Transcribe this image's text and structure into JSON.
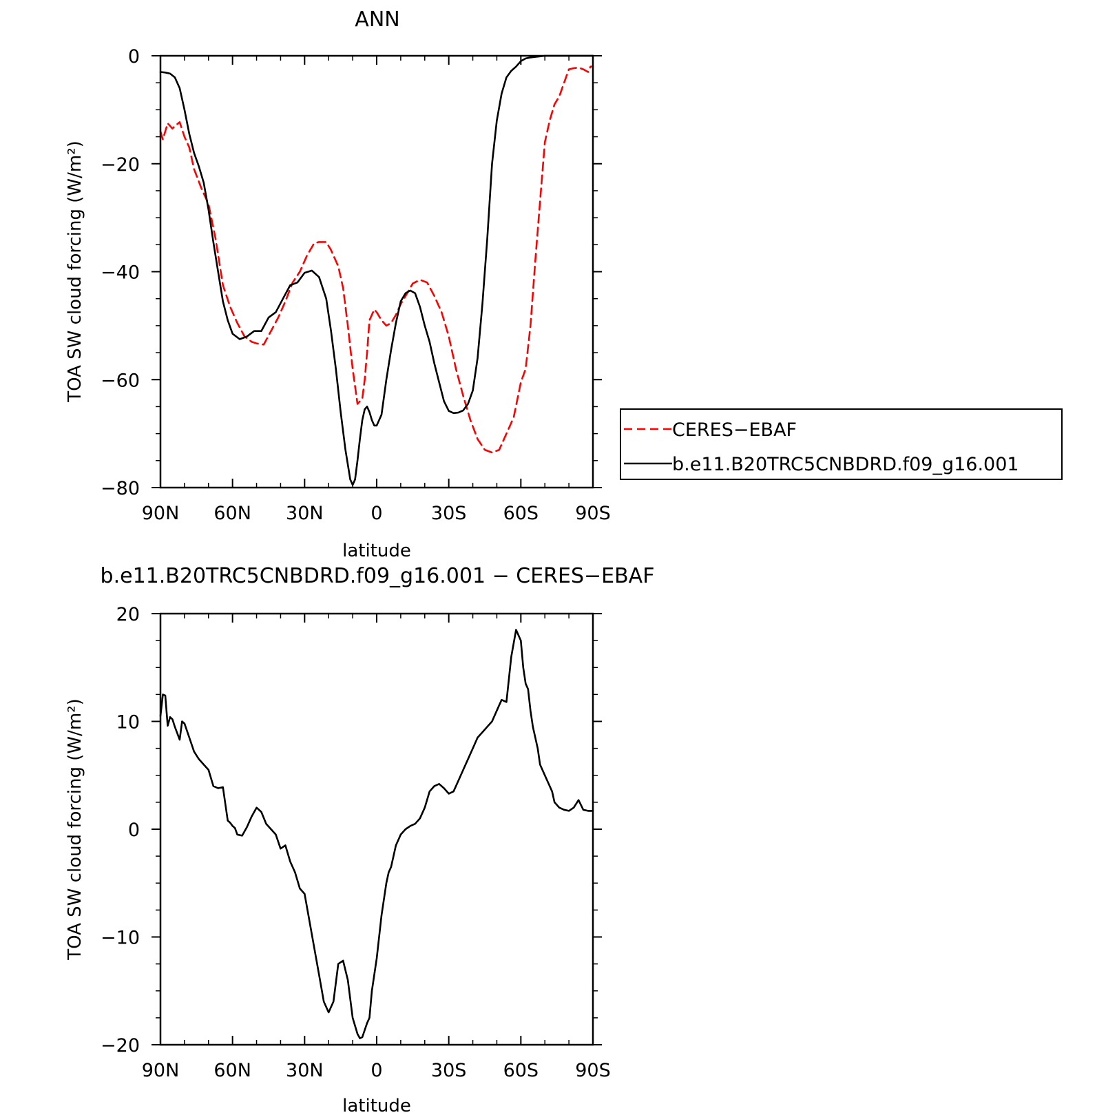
{
  "chart_data": [
    {
      "type": "line",
      "title": "ANN",
      "xlabel": "latitude",
      "ylabel": "TOA SW cloud forcing (W/m²)",
      "xlim": [
        90,
        -90
      ],
      "ylim": [
        -80,
        0
      ],
      "x_ticks": [
        {
          "value": 90,
          "label": "90N"
        },
        {
          "value": 60,
          "label": "60N"
        },
        {
          "value": 30,
          "label": "30N"
        },
        {
          "value": 0,
          "label": "0"
        },
        {
          "value": -30,
          "label": "30S"
        },
        {
          "value": -60,
          "label": "60S"
        },
        {
          "value": -90,
          "label": "90S"
        }
      ],
      "y_ticks": [
        {
          "value": 0,
          "label": "0"
        },
        {
          "value": -20,
          "label": "−20"
        },
        {
          "value": -40,
          "label": "−40"
        },
        {
          "value": -60,
          "label": "−60"
        },
        {
          "value": -80,
          "label": "−80"
        }
      ],
      "legend": {
        "placement": "right"
      },
      "series": [
        {
          "name": "CERES−EBAF",
          "color": "#ff0000",
          "dash": "dashed",
          "x": [
            90,
            89,
            88,
            87,
            85,
            84,
            82,
            80,
            78,
            76,
            73,
            70,
            67,
            64,
            61,
            58,
            55,
            52,
            50,
            47,
            44,
            41,
            38,
            35,
            32,
            29,
            26,
            24,
            21,
            19,
            16,
            14,
            12,
            10,
            8,
            6,
            5,
            4,
            3,
            1,
            0,
            -2,
            -4,
            -6,
            -8,
            -10,
            -12,
            -15,
            -18,
            -21,
            -24,
            -27,
            -30,
            -33,
            -36,
            -39,
            -42,
            -45,
            -48,
            -51,
            -54,
            -57,
            -60,
            -62,
            -64,
            -66,
            -68,
            -70,
            -72,
            -74,
            -76,
            -78,
            -80,
            -82,
            -84,
            -86,
            -88,
            -89,
            -90
          ],
          "y": [
            -14,
            -15.5,
            -14,
            -12.5,
            -13.5,
            -13,
            -12.3,
            -15,
            -17,
            -21,
            -24.5,
            -27.5,
            -34,
            -42.5,
            -46.5,
            -49.5,
            -52,
            -53,
            -53.3,
            -53.5,
            -51,
            -48.5,
            -45.5,
            -42,
            -40,
            -37,
            -34.7,
            -34.5,
            -34.5,
            -36,
            -39,
            -43,
            -50,
            -58,
            -64.5,
            -63.5,
            -60,
            -55,
            -49,
            -47,
            -47.5,
            -49,
            -50,
            -49.5,
            -48,
            -46,
            -44.5,
            -42.2,
            -41.5,
            -42,
            -44.5,
            -47.5,
            -52,
            -58,
            -63,
            -67.5,
            -71,
            -73,
            -73.5,
            -73,
            -70,
            -67,
            -60.5,
            -58,
            -50,
            -38,
            -27,
            -16,
            -12,
            -9,
            -7.5,
            -5,
            -2.5,
            -2.3,
            -2.2,
            -2.5,
            -3,
            -2,
            -2
          ]
        },
        {
          "name": "b.e11.B20TRC5CNBDRD.f09_g16.001",
          "color": "#000000",
          "dash": "solid",
          "x": [
            90,
            88,
            86,
            84,
            82,
            80,
            78,
            76,
            74,
            72,
            70,
            68,
            66,
            64,
            62,
            60,
            57,
            54,
            51,
            48,
            45,
            42,
            39,
            36,
            33,
            30,
            27,
            24,
            21,
            19,
            17,
            15,
            13,
            11,
            10,
            9,
            8,
            7,
            6,
            5,
            4,
            3,
            2,
            1,
            0,
            -1,
            -2,
            -4,
            -6,
            -8,
            -10,
            -12,
            -14,
            -16,
            -18,
            -20,
            -22,
            -24,
            -26,
            -28,
            -30,
            -32,
            -34,
            -36,
            -38,
            -40,
            -42,
            -44,
            -46,
            -48,
            -50,
            -52,
            -54,
            -56,
            -58,
            -60,
            -62,
            -64,
            -66,
            -68,
            -70,
            -72,
            -74,
            -76,
            -78,
            -80,
            -84,
            -88,
            -90
          ],
          "y": [
            -3,
            -3.1,
            -3.3,
            -4,
            -6,
            -10,
            -14.5,
            -18,
            -20.5,
            -23.5,
            -28.5,
            -34.5,
            -40,
            -45.5,
            -49,
            -51.5,
            -52.5,
            -52,
            -51,
            -51,
            -48.5,
            -47.5,
            -45,
            -42.5,
            -42,
            -40.2,
            -39.8,
            -41,
            -45,
            -51,
            -58,
            -66,
            -73,
            -78.5,
            -79.5,
            -78.5,
            -75,
            -71,
            -67.5,
            -65.5,
            -65,
            -66,
            -67.5,
            -68.5,
            -68.5,
            -67.5,
            -66.5,
            -60,
            -54.5,
            -49.5,
            -45.5,
            -44,
            -43.5,
            -44,
            -46.5,
            -50,
            -53,
            -57,
            -60.5,
            -64,
            -65.8,
            -66.2,
            -66.1,
            -65.7,
            -64.5,
            -62,
            -56,
            -46,
            -34,
            -20,
            -12,
            -7,
            -4,
            -2.8,
            -2,
            -1,
            -0.5,
            -0.3,
            -0.2,
            -0.1,
            0,
            0,
            0,
            0,
            0,
            0,
            0,
            0,
            0
          ]
        }
      ]
    },
    {
      "type": "line",
      "title": "b.e11.B20TRC5CNBDRD.f09_g16.001 − CERES−EBAF",
      "xlabel": "latitude",
      "ylabel": "TOA SW cloud forcing (W/m²)",
      "xlim": [
        90,
        -90
      ],
      "ylim": [
        -20,
        20
      ],
      "x_ticks": [
        {
          "value": 90,
          "label": "90N"
        },
        {
          "value": 60,
          "label": "60N"
        },
        {
          "value": 30,
          "label": "30N"
        },
        {
          "value": 0,
          "label": "0"
        },
        {
          "value": -30,
          "label": "30S"
        },
        {
          "value": -60,
          "label": "60S"
        },
        {
          "value": -90,
          "label": "90S"
        }
      ],
      "y_ticks": [
        {
          "value": 20,
          "label": "20"
        },
        {
          "value": 10,
          "label": "10"
        },
        {
          "value": 0,
          "label": "0"
        },
        {
          "value": -10,
          "label": "−10"
        },
        {
          "value": -20,
          "label": "−20"
        }
      ],
      "series": [
        {
          "name": "",
          "color": "#000000",
          "dash": "solid",
          "x": [
            90,
            89,
            88,
            87,
            86,
            85,
            84,
            82,
            81,
            80,
            78,
            76,
            74,
            72,
            70,
            68,
            66,
            64,
            62,
            61,
            60,
            59,
            58,
            56,
            54,
            52,
            50,
            48,
            46,
            44,
            42,
            40,
            38,
            36,
            34,
            32,
            30,
            28,
            26,
            24,
            22,
            20,
            18,
            16,
            14,
            12,
            10,
            8,
            7,
            6,
            4,
            3,
            2,
            0,
            -1,
            -2,
            -3,
            -4,
            -5,
            -6,
            -7,
            -8,
            -10,
            -12,
            -14,
            -16,
            -18,
            -20,
            -22,
            -24,
            -26,
            -28,
            -30,
            -32,
            -34,
            -36,
            -38,
            -40,
            -42,
            -44,
            -46,
            -48,
            -50,
            -52,
            -54,
            -56,
            -58,
            -60,
            -61,
            -62,
            -63,
            -64,
            -65,
            -66,
            -67,
            -68,
            -70,
            -72,
            -73,
            -74,
            -76,
            -78,
            -80,
            -82,
            -84,
            -86,
            -88,
            -89,
            -90
          ],
          "y": [
            10.5,
            12.5,
            12.4,
            9.6,
            10.4,
            10.2,
            9.5,
            8.3,
            10,
            9.8,
            8.5,
            7.2,
            6.5,
            6,
            5.5,
            4,
            3.8,
            3.9,
            0.8,
            0.6,
            0.3,
            0.1,
            -0.5,
            -0.6,
            0.2,
            1.2,
            2,
            1.6,
            0.5,
            0,
            -0.5,
            -1.8,
            -1.5,
            -3,
            -4,
            -5.5,
            -6,
            -8.5,
            -11,
            -13.5,
            -16,
            -17,
            -16,
            -12.5,
            -12.2,
            -14,
            -17.5,
            -19,
            -19.4,
            -19.3,
            -18,
            -17.5,
            -15,
            -12,
            -10,
            -8,
            -6.5,
            -5,
            -4,
            -3.5,
            -2.5,
            -1.5,
            -0.5,
            0,
            0.3,
            0.5,
            1,
            2,
            3.5,
            4,
            4.2,
            3.8,
            3.3,
            3.5,
            4.5,
            5.5,
            6.5,
            7.5,
            8.5,
            9,
            9.5,
            10,
            11,
            12,
            11.8,
            16,
            18.5,
            17.5,
            15,
            13.5,
            13,
            11,
            9.5,
            8.5,
            7.5,
            6,
            5,
            4,
            3.5,
            2.5,
            2,
            1.8,
            1.7,
            2,
            2.7,
            1.8,
            1.7,
            1.7,
            1.7
          ]
        }
      ]
    }
  ]
}
